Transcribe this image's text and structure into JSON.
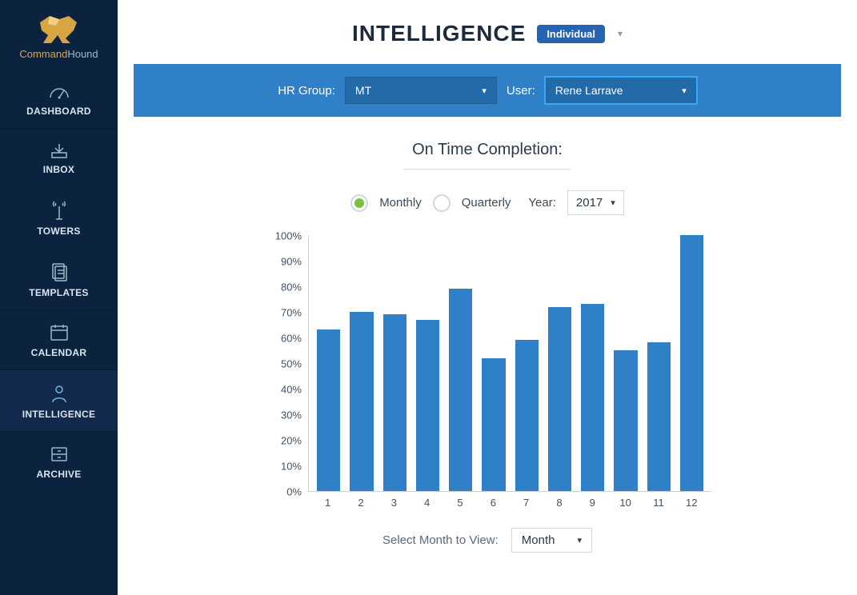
{
  "brand": {
    "name1": "Command",
    "name2": "Hound"
  },
  "sidebar": {
    "items": [
      {
        "key": "dashboard",
        "label": "DASHBOARD",
        "active": false
      },
      {
        "key": "inbox",
        "label": "INBOX",
        "active": false
      },
      {
        "key": "towers",
        "label": "TOWERS",
        "active": false
      },
      {
        "key": "templates",
        "label": "TEMPLATES",
        "active": false
      },
      {
        "key": "calendar",
        "label": "CALENDAR",
        "active": false
      },
      {
        "key": "intelligence",
        "label": "INTELLIGENCE",
        "active": true
      },
      {
        "key": "archive",
        "label": "ARCHIVE",
        "active": false
      }
    ]
  },
  "header": {
    "title": "INTELLIGENCE",
    "mode_label": "Individual"
  },
  "filters": {
    "group_label": "HR Group:",
    "group_value": "MT",
    "user_label": "User:",
    "user_value": "Rene Larrave",
    "bar_bg": "#2f80c6",
    "select_bg": "#236aa8"
  },
  "chart": {
    "title": "On Time Completion:",
    "period_options": {
      "monthly": "Monthly",
      "quarterly": "Quarterly"
    },
    "period_selected": "Monthly",
    "year_label": "Year:",
    "year_value": "2017",
    "type": "bar",
    "ylim": [
      0,
      100
    ],
    "ytick_step": 10,
    "y_suffix": "%",
    "categories": [
      "1",
      "2",
      "3",
      "4",
      "5",
      "6",
      "7",
      "8",
      "9",
      "10",
      "11",
      "12"
    ],
    "values": [
      63,
      70,
      69,
      67,
      79,
      52,
      59,
      72,
      73,
      55,
      58,
      100
    ],
    "bar_color": "#2f80c6",
    "axis_color": "#c8d0d8",
    "label_color": "#445063",
    "label_fontsize": 13
  },
  "footer": {
    "label": "Select Month to View:",
    "value": "Month"
  }
}
